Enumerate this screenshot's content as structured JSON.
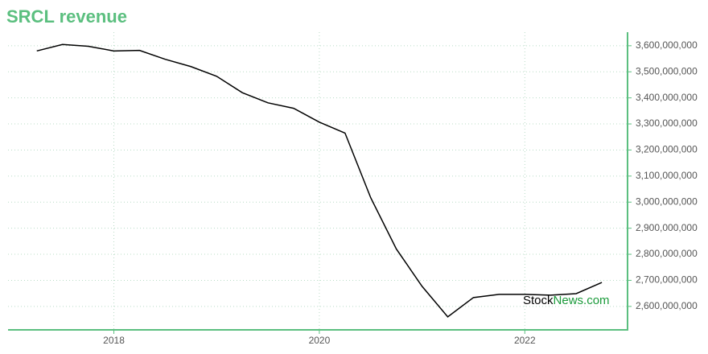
{
  "chart_data": {
    "type": "line",
    "title": "SRCL revenue",
    "x": [
      2017.25,
      2017.5,
      2017.75,
      2018.0,
      2018.25,
      2018.5,
      2018.75,
      2019.0,
      2019.25,
      2019.5,
      2019.75,
      2020.0,
      2020.25,
      2020.5,
      2020.75,
      2021.0,
      2021.25,
      2021.5,
      2021.75,
      2022.0,
      2022.25,
      2022.5,
      2022.75
    ],
    "series": [
      {
        "color": "#000000",
        "values": [
          3580000000,
          3605000000,
          3598000000,
          3580000000,
          3582000000,
          3548000000,
          3520000000,
          3483000000,
          3420000000,
          3381000000,
          3360000000,
          3307000000,
          3265000000,
          3017000000,
          2820000000,
          2677000000,
          2560000000,
          2634000000,
          2646000000,
          2646000000,
          2643000000,
          2649000000,
          2692000000
        ]
      }
    ],
    "xlim": [
      2016.97,
      2023.0
    ],
    "xticks": [
      2018,
      2020,
      2022
    ],
    "ylim": [
      2510000000,
      3652000000
    ],
    "yticks": [
      {
        "value": 2600000000,
        "label": "2,600,000,000"
      },
      {
        "value": 2700000000,
        "label": "2,700,000,000"
      },
      {
        "value": 2800000000,
        "label": "2,800,000,000"
      },
      {
        "value": 2900000000,
        "label": "2,900,000,000"
      },
      {
        "value": 3000000000,
        "label": "3,000,000,000"
      },
      {
        "value": 3100000000,
        "label": "3,100,000,000"
      },
      {
        "value": 3200000000,
        "label": "3,200,000,000"
      },
      {
        "value": 3300000000,
        "label": "3,300,000,000"
      },
      {
        "value": 3400000000,
        "label": "3,400,000,000"
      },
      {
        "value": 3500000000,
        "label": "3,500,000,000"
      },
      {
        "value": 3600000000,
        "label": "3,600,000,000"
      }
    ],
    "grid": true,
    "axis_color": "#5bbf7f",
    "watermark": {
      "prefix": "Stock",
      "suffix": "News.com"
    }
  }
}
